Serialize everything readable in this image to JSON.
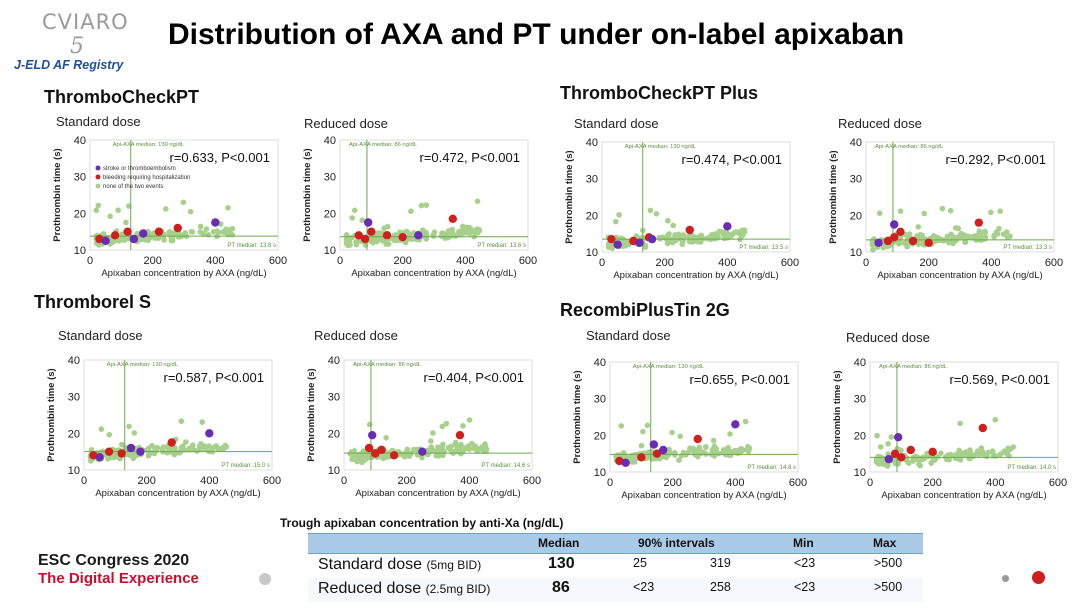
{
  "logo": {
    "top": "CVIARO",
    "num": "5",
    "registry": "J-ELD AF Registry"
  },
  "title": "Distribution of AXA and PT under on-label apixaban",
  "methods": [
    "ThromboCheckPT",
    "ThromboCheckPT Plus",
    "Thromborel S",
    "RecombiPlusTin 2G"
  ],
  "colors": {
    "green": "#a8d08d",
    "red": "#d01f1f",
    "purple": "#6a2bb5",
    "line": "#6aaa4a"
  },
  "chart_data": [
    {
      "type": "scatter",
      "panel": "ThromboCheckPT",
      "dose": "Standard dose",
      "xlabel": "Apixaban concentration by AXA (ng/dL)",
      "ylabel": "Prothrombin time (s)",
      "xlim": [
        0,
        600
      ],
      "ylim": [
        10,
        40
      ],
      "xticks": [
        "0",
        "200",
        "400",
        "600"
      ],
      "yticks": [
        "10",
        "20",
        "30",
        "40"
      ],
      "stat": "r=0.633, P<0.001",
      "axa_median": 130,
      "axa_label": "Api-AXA median: 130 ng/dL",
      "pt_median": 13.8,
      "pt_label": "PT median: 13.8 s",
      "legend": [
        "stroke or thromboembolism",
        "bleeding requiring hospitalization",
        "none of the two events"
      ],
      "red": [
        [
          30,
          13
        ],
        [
          80,
          14
        ],
        [
          120,
          15
        ],
        [
          220,
          15
        ],
        [
          280,
          16
        ]
      ],
      "purple": [
        [
          50,
          12.5
        ],
        [
          140,
          13
        ],
        [
          170,
          14.5
        ],
        [
          400,
          17.5
        ]
      ]
    },
    {
      "type": "scatter",
      "panel": "ThromboCheckPT",
      "dose": "Reduced dose",
      "xlabel": "Apixaban concentration by AXA (ng/dL)",
      "ylabel": "Prothrombin time (s)",
      "xlim": [
        0,
        600
      ],
      "ylim": [
        10,
        40
      ],
      "xticks": [
        "0",
        "200",
        "400",
        "600"
      ],
      "yticks": [
        "10",
        "20",
        "30",
        "40"
      ],
      "stat": "r=0.472, P<0.001",
      "axa_median": 86,
      "axa_label": "Api-AXA median: 86 ng/dL",
      "pt_median": 13.6,
      "pt_label": "PT median: 13.6 s",
      "legend": [],
      "red": [
        [
          60,
          14
        ],
        [
          80,
          13
        ],
        [
          100,
          15
        ],
        [
          150,
          14
        ],
        [
          200,
          13.5
        ],
        [
          360,
          18.5
        ]
      ],
      "purple": [
        [
          90,
          17.5
        ],
        [
          250,
          14
        ]
      ]
    },
    {
      "type": "scatter",
      "panel": "ThromboCheckPT Plus",
      "dose": "Standard dose",
      "xlabel": "Apixaban concentration by AXA (ng/dL)",
      "ylabel": "Prothrombin time (s)",
      "xlim": [
        0,
        600
      ],
      "ylim": [
        10,
        40
      ],
      "xticks": [
        "0",
        "200",
        "400",
        "600"
      ],
      "yticks": [
        "10",
        "20",
        "30",
        "40"
      ],
      "stat": "r=0.474, P<0.001",
      "axa_median": 130,
      "axa_label": "Api-AXA median: 130 ng/dL",
      "pt_median": 13.5,
      "pt_label": "PT median: 13.5 s",
      "legend": [],
      "red": [
        [
          30,
          13.5
        ],
        [
          100,
          13
        ],
        [
          150,
          14
        ],
        [
          280,
          16
        ]
      ],
      "purple": [
        [
          50,
          12
        ],
        [
          120,
          12.5
        ],
        [
          160,
          13.5
        ],
        [
          400,
          17
        ]
      ]
    },
    {
      "type": "scatter",
      "panel": "ThromboCheckPT Plus",
      "dose": "Reduced dose",
      "xlabel": "Apixaban concentration by AXA (ng/dL)",
      "ylabel": "Prothrombin time (s)",
      "xlim": [
        0,
        600
      ],
      "ylim": [
        10,
        40
      ],
      "xticks": [
        "0",
        "200",
        "400",
        "600"
      ],
      "yticks": [
        "10",
        "20",
        "30",
        "40"
      ],
      "stat": "r=0.292, P<0.001",
      "axa_median": 86,
      "axa_label": "Api-AXA median: 86 ng/dL",
      "pt_median": 13.3,
      "pt_label": "PT median: 13.3 s",
      "legend": [],
      "red": [
        [
          70,
          13
        ],
        [
          90,
          14
        ],
        [
          110,
          15.5
        ],
        [
          150,
          13
        ],
        [
          200,
          12.5
        ],
        [
          360,
          18
        ]
      ],
      "purple": [
        [
          90,
          17.5
        ],
        [
          40,
          12.5
        ]
      ]
    },
    {
      "type": "scatter",
      "panel": "Thromborel S",
      "dose": "Standard dose",
      "xlabel": "Apixaban concentration by AXA (ng/dL)",
      "ylabel": "Prothrombin time (s)",
      "xlim": [
        0,
        600
      ],
      "ylim": [
        10,
        40
      ],
      "xticks": [
        "0",
        "200",
        "400",
        "600"
      ],
      "yticks": [
        "10",
        "20",
        "30",
        "40"
      ],
      "stat": "r=0.587, P<0.001",
      "axa_median": 130,
      "axa_label": "Api-AXA median: 130 ng/dL",
      "pt_median": 15.0,
      "pt_label": "PT median: 15.0 s",
      "legend": [],
      "red": [
        [
          30,
          14
        ],
        [
          80,
          15
        ],
        [
          120,
          14.5
        ],
        [
          280,
          17.5
        ]
      ],
      "purple": [
        [
          50,
          13.5
        ],
        [
          150,
          16
        ],
        [
          180,
          15
        ],
        [
          400,
          20
        ]
      ]
    },
    {
      "type": "scatter",
      "panel": "Thromborel S",
      "dose": "Reduced dose",
      "xlabel": "Apixaban concentration by AXA (ng/dL)",
      "ylabel": "Prothrombin time (s)",
      "xlim": [
        0,
        600
      ],
      "ylim": [
        10,
        40
      ],
      "xticks": [
        "0",
        "200",
        "400",
        "600"
      ],
      "yticks": [
        "10",
        "20",
        "30",
        "40"
      ],
      "stat": "r=0.404, P<0.001",
      "axa_median": 86,
      "axa_label": "Api-AXA median: 86 ng/dL",
      "pt_median": 14.6,
      "pt_label": "PT median: 14.6 s",
      "legend": [],
      "red": [
        [
          80,
          16
        ],
        [
          100,
          14.5
        ],
        [
          120,
          15.5
        ],
        [
          160,
          14
        ],
        [
          370,
          19.5
        ]
      ],
      "purple": [
        [
          90,
          19.5
        ],
        [
          250,
          15
        ]
      ]
    },
    {
      "type": "scatter",
      "panel": "RecombiPlusTin 2G",
      "dose": "Standard dose",
      "xlabel": "Apixaban concentration by AXA (ng/dL)",
      "ylabel": "Prothrombin time (s)",
      "xlim": [
        0,
        600
      ],
      "ylim": [
        10,
        40
      ],
      "xticks": [
        "0",
        "200",
        "400",
        "600"
      ],
      "yticks": [
        "10",
        "20",
        "30",
        "40"
      ],
      "stat": "r=0.655, P<0.001",
      "axa_median": 130,
      "axa_label": "Api-AXA median: 130 ng/dL",
      "pt_median": 14.8,
      "pt_label": "PT median: 14.8 s",
      "legend": [],
      "red": [
        [
          30,
          13
        ],
        [
          100,
          14
        ],
        [
          150,
          15
        ],
        [
          280,
          19
        ]
      ],
      "purple": [
        [
          50,
          12.5
        ],
        [
          140,
          17.5
        ],
        [
          170,
          16
        ],
        [
          400,
          23
        ]
      ]
    },
    {
      "type": "scatter",
      "panel": "RecombiPlusTin 2G",
      "dose": "Reduced dose",
      "xlabel": "Apixaban concentration by AXA (ng/dL)",
      "ylabel": "Prothrombin time (s)",
      "xlim": [
        0,
        600
      ],
      "ylim": [
        10,
        40
      ],
      "xticks": [
        "0",
        "200",
        "400",
        "600"
      ],
      "yticks": [
        "10",
        "20",
        "30",
        "40"
      ],
      "stat": "r=0.569, P<0.001",
      "axa_median": 86,
      "axa_label": "Api-AXA median: 86 ng/dL",
      "pt_median": 14.0,
      "pt_label": "PT median: 14.0 s",
      "legend": [],
      "red": [
        [
          80,
          15
        ],
        [
          100,
          14
        ],
        [
          130,
          16
        ],
        [
          200,
          15.5
        ],
        [
          360,
          22
        ]
      ],
      "purple": [
        [
          90,
          19.5
        ],
        [
          60,
          13.5
        ]
      ]
    }
  ],
  "table": {
    "title": "Trough apixaban concentration by anti-Xa (ng/dL)",
    "headers": [
      "Median",
      "90% intervals",
      "Min",
      "Max"
    ],
    "rows": [
      {
        "label": "Standard dose",
        "sub": "(5mg BID)",
        "median": "130",
        "p5": "25",
        "p95": "319",
        "min": "<23",
        "max": ">500"
      },
      {
        "label": "Reduced dose",
        "sub": "(2.5mg BID)",
        "median": "86",
        "p5": "<23",
        "p95": "258",
        "min": "<23",
        "max": ">500"
      }
    ]
  },
  "conference": {
    "line1": "ESC Congress 2020",
    "line2": "The Digital Experience"
  }
}
